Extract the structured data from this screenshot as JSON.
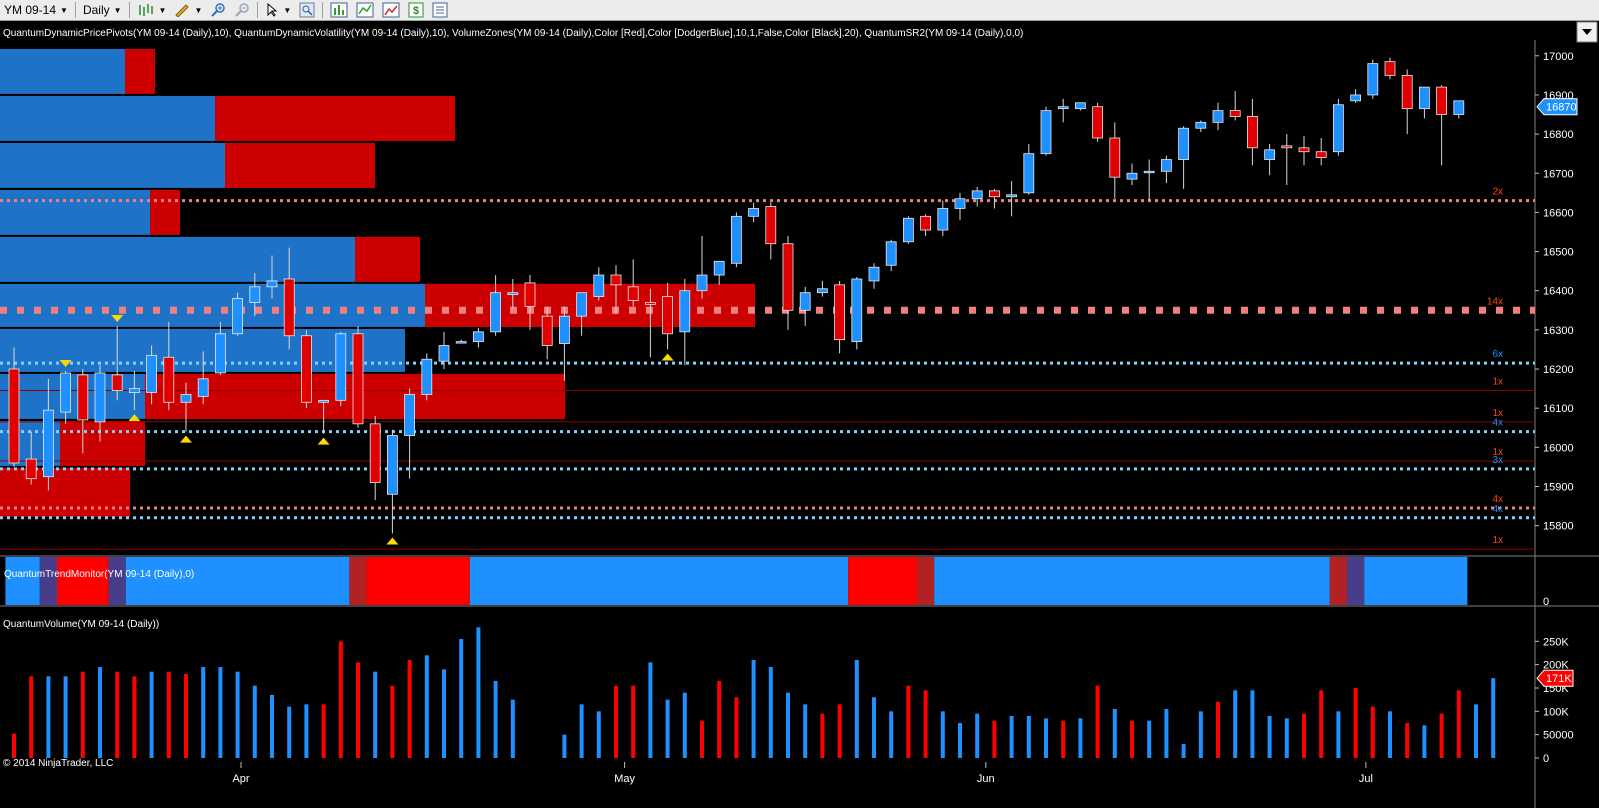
{
  "toolbar": {
    "instrument": "YM 09-14",
    "timeframe": "Daily",
    "icons": [
      "bar-type-icon",
      "drawing-pencil-icon",
      "zoom-in-icon",
      "zoom-out-icon",
      "cursor-icon",
      "magnifier-icon",
      "chart-properties-icon",
      "data-box-icon",
      "chart-image-icon",
      "money-icon",
      "list-icon"
    ]
  },
  "indicators_label": "QuantumDynamicPricePivots(YM 09-14 (Daily),10), QuantumDynamicVolatility(YM 09-14 (Daily),10), VolumeZones(YM 09-14 (Daily),Color [Red],Color [DodgerBlue],10,1,False,Color [Black],20), QuantumSR2(YM 09-14 (Daily),0,0)",
  "trend_label": "QuantumTrendMonitor(YM 09-14 (Daily),0)",
  "volume_label": "QuantumVolume(YM 09-14 (Daily))",
  "copyright": "© 2014 NinjaTrader, LLC",
  "colors": {
    "up": "#1e90ff",
    "down": "#e00000",
    "bg": "#000000",
    "grid": "#303030",
    "pivot_red": "#f08080",
    "pivot_blue": "#87cefa",
    "trend_blue": "#1e90ff",
    "trend_red": "#ff0000",
    "trend_darkred": "#b22222",
    "trend_purple": "#483d8b"
  },
  "price_axis": {
    "ticks": [
      "17000",
      "16900",
      "16800",
      "16700",
      "16600",
      "16500",
      "16400",
      "16300",
      "16200",
      "16100",
      "16000",
      "15900",
      "15800"
    ],
    "current_price": "16870"
  },
  "volume_axis": {
    "ticks": [
      "250K",
      "200K",
      "150K",
      "100K",
      "50000",
      "0"
    ],
    "current_volume": "171K"
  },
  "trend_axis": {
    "ticks": [
      "0"
    ]
  },
  "date_axis": [
    "Apr",
    "May",
    "Jun",
    "Jul"
  ],
  "sr_levels": [
    {
      "price": 16630,
      "style": "dotted",
      "color": "#f08080",
      "label": "2x",
      "label_color": "#ff4500"
    },
    {
      "price": 16350,
      "style": "heavy-dotted",
      "color": "#f08080",
      "label": "14x",
      "label_color": "#ff4500"
    },
    {
      "price": 16215,
      "style": "dotted",
      "color": "#87cefa",
      "label": "6x",
      "label_color": "#1e90ff"
    },
    {
      "price": 16145,
      "style": "thin",
      "color": "#8b0000",
      "label": "1x",
      "label_color": "#ff4500"
    },
    {
      "price": 16065,
      "style": "thin",
      "color": "#8b0000",
      "label": "1x",
      "label_color": "#ff4500"
    },
    {
      "price": 16040,
      "style": "dotted",
      "color": "#87cefa",
      "label": "4x",
      "label_color": "#1e90ff"
    },
    {
      "price": 15965,
      "style": "thin",
      "color": "#8b0000",
      "label": "1x",
      "label_color": "#ff4500"
    },
    {
      "price": 15945,
      "style": "dotted",
      "color": "#87cefa",
      "label": "3x",
      "label_color": "#1e90ff"
    },
    {
      "price": 15845,
      "style": "dotted",
      "color": "#f08080",
      "label": "4x",
      "label_color": "#ff4500"
    },
    {
      "price": 15820,
      "style": "dotted",
      "color": "#87cefa",
      "label": "4x",
      "label_color": "#1e90ff"
    },
    {
      "price": 15740,
      "style": "thin",
      "color": "#8b0000",
      "label": "1x",
      "label_color": "#ff4500"
    }
  ],
  "chart_data": {
    "type": "candlestick",
    "title": "YM 09-14 Daily",
    "y_range": [
      15725,
      17035
    ],
    "volume_range": [
      0,
      270000
    ],
    "candles": [
      {
        "o": 16200,
        "h": 16255,
        "l": 15950,
        "c": 15960
      },
      {
        "o": 15970,
        "h": 16040,
        "l": 15905,
        "c": 15920
      },
      {
        "o": 15925,
        "h": 16175,
        "l": 15890,
        "c": 16095
      },
      {
        "o": 16090,
        "h": 16195,
        "l": 16060,
        "c": 16190
      },
      {
        "o": 16185,
        "h": 16200,
        "l": 15985,
        "c": 16070
      },
      {
        "o": 16065,
        "h": 16210,
        "l": 16015,
        "c": 16190
      },
      {
        "o": 16185,
        "h": 16310,
        "l": 16120,
        "c": 16145
      },
      {
        "o": 16140,
        "h": 16195,
        "l": 16095,
        "c": 16150
      },
      {
        "o": 16140,
        "h": 16260,
        "l": 16110,
        "c": 16235
      },
      {
        "o": 16230,
        "h": 16320,
        "l": 16095,
        "c": 16115
      },
      {
        "o": 16115,
        "h": 16165,
        "l": 16040,
        "c": 16135
      },
      {
        "o": 16130,
        "h": 16245,
        "l": 16110,
        "c": 16175
      },
      {
        "o": 16190,
        "h": 16320,
        "l": 16185,
        "c": 16290
      },
      {
        "o": 16290,
        "h": 16395,
        "l": 16285,
        "c": 16380
      },
      {
        "o": 16370,
        "h": 16445,
        "l": 16335,
        "c": 16410
      },
      {
        "o": 16410,
        "h": 16490,
        "l": 16380,
        "c": 16425
      },
      {
        "o": 16430,
        "h": 16510,
        "l": 16250,
        "c": 16285
      },
      {
        "o": 16285,
        "h": 16300,
        "l": 16100,
        "c": 16115
      },
      {
        "o": 16115,
        "h": 16120,
        "l": 16035,
        "c": 16120
      },
      {
        "o": 16120,
        "h": 16295,
        "l": 16105,
        "c": 16290
      },
      {
        "o": 16290,
        "h": 16310,
        "l": 16050,
        "c": 16060
      },
      {
        "o": 16060,
        "h": 16080,
        "l": 15865,
        "c": 15910
      },
      {
        "o": 15880,
        "h": 16045,
        "l": 15780,
        "c": 16030
      },
      {
        "o": 16030,
        "h": 16150,
        "l": 15920,
        "c": 16135
      },
      {
        "o": 16135,
        "h": 16240,
        "l": 16120,
        "c": 16225
      },
      {
        "o": 16220,
        "h": 16295,
        "l": 16200,
        "c": 16260
      },
      {
        "o": 16270,
        "h": 16275,
        "l": 16265,
        "c": 16270
      },
      {
        "o": 16270,
        "h": 16305,
        "l": 16255,
        "c": 16295
      },
      {
        "o": 16295,
        "h": 16440,
        "l": 16285,
        "c": 16395
      },
      {
        "o": 16390,
        "h": 16430,
        "l": 16355,
        "c": 16395
      },
      {
        "o": 16420,
        "h": 16440,
        "l": 16300,
        "c": 16360
      },
      {
        "o": 16335,
        "h": 16360,
        "l": 16225,
        "c": 16260
      },
      {
        "o": 16265,
        "h": 16360,
        "l": 16170,
        "c": 16335
      },
      {
        "o": 16335,
        "h": 16390,
        "l": 16285,
        "c": 16395
      },
      {
        "o": 16385,
        "h": 16460,
        "l": 16375,
        "c": 16440
      },
      {
        "o": 16440,
        "h": 16465,
        "l": 16340,
        "c": 16415
      },
      {
        "o": 16410,
        "h": 16480,
        "l": 16360,
        "c": 16375
      },
      {
        "o": 16370,
        "h": 16405,
        "l": 16230,
        "c": 16365
      },
      {
        "o": 16385,
        "h": 16420,
        "l": 16250,
        "c": 16290
      },
      {
        "o": 16295,
        "h": 16430,
        "l": 16210,
        "c": 16400
      },
      {
        "o": 16400,
        "h": 16540,
        "l": 16380,
        "c": 16440
      },
      {
        "o": 16440,
        "h": 16470,
        "l": 16415,
        "c": 16475
      },
      {
        "o": 16470,
        "h": 16600,
        "l": 16460,
        "c": 16590
      },
      {
        "o": 16590,
        "h": 16625,
        "l": 16575,
        "c": 16610
      },
      {
        "o": 16615,
        "h": 16625,
        "l": 16480,
        "c": 16520
      },
      {
        "o": 16520,
        "h": 16540,
        "l": 16300,
        "c": 16350
      },
      {
        "o": 16350,
        "h": 16410,
        "l": 16310,
        "c": 16395
      },
      {
        "o": 16395,
        "h": 16425,
        "l": 16385,
        "c": 16405
      },
      {
        "o": 16415,
        "h": 16425,
        "l": 16240,
        "c": 16275
      },
      {
        "o": 16270,
        "h": 16435,
        "l": 16250,
        "c": 16430
      },
      {
        "o": 16425,
        "h": 16470,
        "l": 16405,
        "c": 16460
      },
      {
        "o": 16465,
        "h": 16530,
        "l": 16450,
        "c": 16525
      },
      {
        "o": 16525,
        "h": 16590,
        "l": 16520,
        "c": 16585
      },
      {
        "o": 16590,
        "h": 16595,
        "l": 16540,
        "c": 16555
      },
      {
        "o": 16555,
        "h": 16630,
        "l": 16540,
        "c": 16610
      },
      {
        "o": 16610,
        "h": 16650,
        "l": 16580,
        "c": 16635
      },
      {
        "o": 16635,
        "h": 16665,
        "l": 16615,
        "c": 16655
      },
      {
        "o": 16655,
        "h": 16660,
        "l": 16610,
        "c": 16640
      },
      {
        "o": 16640,
        "h": 16680,
        "l": 16590,
        "c": 16645
      },
      {
        "o": 16650,
        "h": 16775,
        "l": 16645,
        "c": 16750
      },
      {
        "o": 16750,
        "h": 16870,
        "l": 16745,
        "c": 16860
      },
      {
        "o": 16865,
        "h": 16890,
        "l": 16830,
        "c": 16870
      },
      {
        "o": 16865,
        "h": 16880,
        "l": 16860,
        "c": 16880
      },
      {
        "o": 16870,
        "h": 16880,
        "l": 16780,
        "c": 16790
      },
      {
        "o": 16790,
        "h": 16830,
        "l": 16635,
        "c": 16690
      },
      {
        "o": 16685,
        "h": 16725,
        "l": 16670,
        "c": 16700
      },
      {
        "o": 16705,
        "h": 16735,
        "l": 16630,
        "c": 16705
      },
      {
        "o": 16705,
        "h": 16745,
        "l": 16675,
        "c": 16735
      },
      {
        "o": 16735,
        "h": 16820,
        "l": 16660,
        "c": 16815
      },
      {
        "o": 16815,
        "h": 16835,
        "l": 16805,
        "c": 16830
      },
      {
        "o": 16830,
        "h": 16880,
        "l": 16810,
        "c": 16860
      },
      {
        "o": 16860,
        "h": 16910,
        "l": 16835,
        "c": 16845
      },
      {
        "o": 16845,
        "h": 16890,
        "l": 16720,
        "c": 16765
      },
      {
        "o": 16735,
        "h": 16775,
        "l": 16695,
        "c": 16760
      },
      {
        "o": 16770,
        "h": 16800,
        "l": 16670,
        "c": 16765
      },
      {
        "o": 16765,
        "h": 16795,
        "l": 16720,
        "c": 16755
      },
      {
        "o": 16755,
        "h": 16790,
        "l": 16720,
        "c": 16740
      },
      {
        "o": 16755,
        "h": 16890,
        "l": 16745,
        "c": 16875
      },
      {
        "o": 16885,
        "h": 16915,
        "l": 16880,
        "c": 16900
      },
      {
        "o": 16900,
        "h": 16990,
        "l": 16890,
        "c": 16980
      },
      {
        "o": 16985,
        "h": 16995,
        "l": 16940,
        "c": 16950
      },
      {
        "o": 16950,
        "h": 16965,
        "l": 16800,
        "c": 16865
      },
      {
        "o": 16865,
        "h": 16915,
        "l": 16840,
        "c": 16920
      },
      {
        "o": 16920,
        "h": 16925,
        "l": 16720,
        "c": 16850
      },
      {
        "o": 16850,
        "h": 16885,
        "l": 16840,
        "c": 16885
      }
    ],
    "volumes": [
      52000,
      175000,
      175000,
      175000,
      185000,
      195000,
      185000,
      175000,
      185000,
      185000,
      180000,
      195000,
      195000,
      185000,
      155000,
      135000,
      110000,
      115000,
      115000,
      250000,
      205000,
      185000,
      155000,
      210000,
      220000,
      190000,
      255000,
      280000,
      165000,
      125000,
      0,
      0,
      50000,
      115000,
      100000,
      155000,
      155000,
      205000,
      125000,
      140000,
      80000,
      165000,
      130000,
      210000,
      195000,
      140000,
      115000,
      95000,
      115000,
      210000,
      130000,
      100000,
      155000,
      145000,
      100000,
      75000,
      95000,
      80000,
      90000,
      90000,
      85000,
      80000,
      85000,
      155000,
      105000,
      80000,
      80000,
      105000,
      30000,
      100000,
      120000,
      145000,
      145000,
      90000,
      85000,
      95000,
      145000,
      100000,
      150000,
      110000,
      100000,
      75000,
      70000,
      95000,
      145000,
      115000,
      171000
    ],
    "volume_colors": [
      "r",
      "r",
      "b",
      "b",
      "r",
      "b",
      "r",
      "r",
      "b",
      "r",
      "r",
      "b",
      "b",
      "b",
      "b",
      "b",
      "b",
      "b",
      "r",
      "r",
      "r",
      "b",
      "r",
      "r",
      "b",
      "b",
      "b",
      "b",
      "b",
      "b",
      "n",
      "n",
      "b",
      "b",
      "b",
      "r",
      "r",
      "b",
      "b",
      "b",
      "r",
      "r",
      "r",
      "b",
      "b",
      "b",
      "b",
      "r",
      "r",
      "b",
      "b",
      "b",
      "r",
      "r",
      "b",
      "b",
      "b",
      "r",
      "b",
      "b",
      "b",
      "r",
      "b",
      "r",
      "b",
      "r",
      "b",
      "b",
      "b",
      "b",
      "r",
      "b",
      "b",
      "b",
      "b",
      "r",
      "r",
      "b",
      "r",
      "r",
      "b",
      "r",
      "b",
      "r",
      "r",
      "b",
      "b",
      "r",
      "r",
      "b",
      "r",
      "b"
    ],
    "price_pivot_zones": [
      {
        "low": 16900,
        "high": 17020,
        "buy": 125,
        "sell": 30
      },
      {
        "low": 16780,
        "high": 16900,
        "buy": 215,
        "sell": 240
      },
      {
        "low": 16660,
        "high": 16780,
        "buy": 225,
        "sell": 150
      },
      {
        "low": 16540,
        "high": 16660,
        "buy": 150,
        "sell": 30
      },
      {
        "low": 16420,
        "high": 16540,
        "buy": 355,
        "sell": 65
      },
      {
        "low": 16305,
        "high": 16420,
        "buy": 425,
        "sell": 330
      },
      {
        "low": 16190,
        "high": 16305,
        "buy": 405,
        "sell": 0
      },
      {
        "low": 16070,
        "high": 16190,
        "buy": 145,
        "sell": 420
      },
      {
        "low": 15950,
        "high": 16070,
        "buy": 60,
        "sell": 85
      },
      {
        "low": 15820,
        "high": 15950,
        "buy": 0,
        "sell": 130
      }
    ],
    "trend_segments": [
      {
        "c": "blue",
        "n": 2
      },
      {
        "c": "purple",
        "n": 1
      },
      {
        "c": "red",
        "n": 3
      },
      {
        "c": "purple",
        "n": 1
      },
      {
        "c": "blue",
        "n": 13
      },
      {
        "c": "darkred",
        "n": 1
      },
      {
        "c": "red",
        "n": 6
      },
      {
        "c": "blue",
        "n": 22
      },
      {
        "c": "red",
        "n": 4
      },
      {
        "c": "darkred",
        "n": 1
      },
      {
        "c": "blue",
        "n": 23
      },
      {
        "c": "darkred",
        "n": 1
      },
      {
        "c": "purple",
        "n": 1
      },
      {
        "c": "blue",
        "n": 6
      }
    ],
    "pivot_markers": [
      {
        "i": 3,
        "type": "high"
      },
      {
        "i": 6,
        "type": "high"
      },
      {
        "i": 7,
        "type": "low"
      },
      {
        "i": 10,
        "type": "low"
      },
      {
        "i": 18,
        "type": "low"
      },
      {
        "i": 22,
        "type": "low"
      },
      {
        "i": 38,
        "type": "low"
      }
    ]
  }
}
